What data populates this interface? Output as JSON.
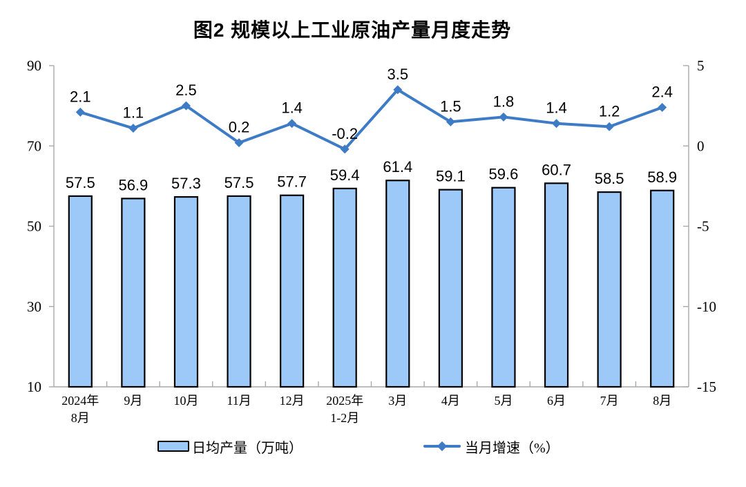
{
  "chart_data": {
    "type": "combo",
    "title": "图2 规模以上工业原油产量月度走势",
    "categories": [
      [
        "2024年",
        "8月"
      ],
      [
        "9月"
      ],
      [
        "10月"
      ],
      [
        "11月"
      ],
      [
        "12月"
      ],
      [
        "2025年",
        "1-2月"
      ],
      [
        "3月"
      ],
      [
        "4月"
      ],
      [
        "5月"
      ],
      [
        "6月"
      ],
      [
        "7月"
      ],
      [
        "8月"
      ]
    ],
    "series": [
      {
        "name": "日均产量（万吨）",
        "type": "bar",
        "axis": "left",
        "values": [
          57.5,
          56.9,
          57.3,
          57.5,
          57.7,
          59.4,
          61.4,
          59.1,
          59.6,
          60.7,
          58.5,
          58.9
        ]
      },
      {
        "name": "当月增速（%）",
        "type": "line",
        "axis": "right",
        "values": [
          2.1,
          1.1,
          2.5,
          0.2,
          1.4,
          -0.2,
          3.5,
          1.5,
          1.8,
          1.4,
          1.2,
          2.4
        ]
      }
    ],
    "left_axis": {
      "min": 10,
      "max": 90,
      "ticks": [
        10,
        30,
        50,
        70,
        90
      ]
    },
    "right_axis": {
      "min": -15,
      "max": 5,
      "ticks": [
        -15,
        -10,
        -5,
        0,
        5
      ]
    },
    "grid": false,
    "legend_position": "bottom",
    "colors": {
      "bar_fill": "#9CC9F7",
      "bar_border": "#000000",
      "line": "#3E7BC6",
      "axis": "#A9A9A9",
      "text": "#000000"
    }
  }
}
